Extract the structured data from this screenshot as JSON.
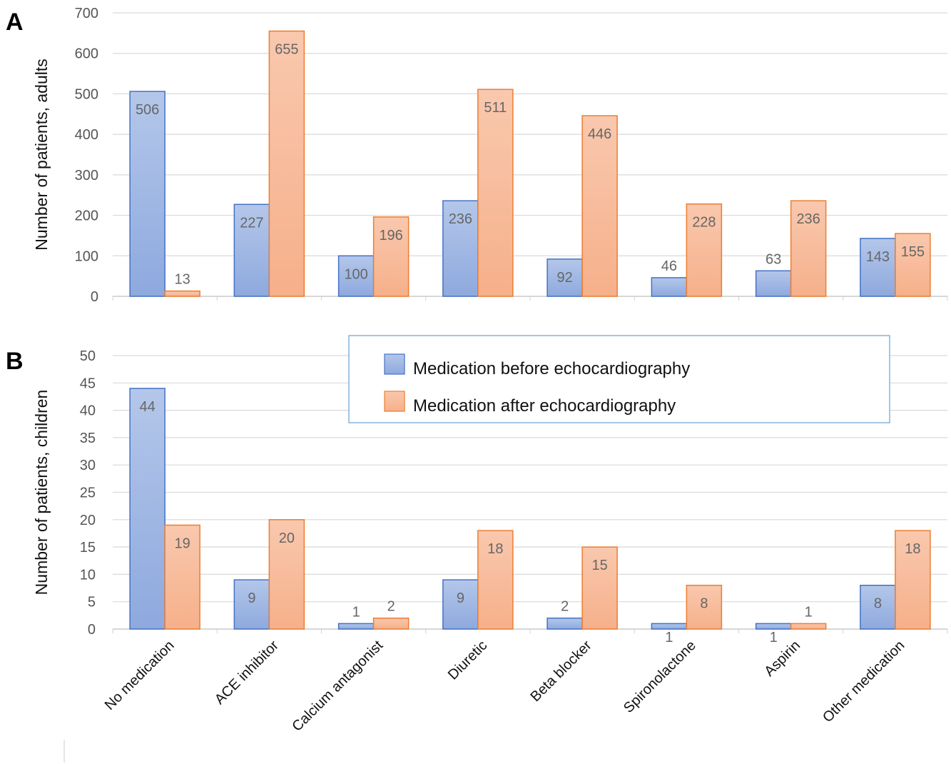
{
  "chart_data": [
    {
      "panel": "A",
      "type": "bar",
      "ylabel": "Number of patients, adults",
      "ylim": [
        0,
        700
      ],
      "yticks": [
        0,
        100,
        200,
        300,
        400,
        500,
        600,
        700
      ],
      "grid": true,
      "categories": [
        "No medication",
        "ACE inhibitor",
        "Calcium antagonist",
        "Diuretic",
        "Beta blocker",
        "Spironolactone",
        "Aspirin",
        "Other medication"
      ],
      "series": [
        {
          "name": "Medication before echocardiography",
          "values": [
            506,
            227,
            100,
            236,
            92,
            46,
            63,
            143
          ]
        },
        {
          "name": "Medication after echocardiography",
          "values": [
            13,
            655,
            196,
            511,
            446,
            228,
            236,
            155
          ]
        }
      ]
    },
    {
      "panel": "B",
      "type": "bar",
      "ylabel": "Number of patients, children",
      "ylim": [
        0,
        50
      ],
      "yticks": [
        0,
        5,
        10,
        15,
        20,
        25,
        30,
        35,
        40,
        45,
        50
      ],
      "grid": true,
      "categories": [
        "No medication",
        "ACE inhibitor",
        "Calcium antagonist",
        "Diuretic",
        "Beta blocker",
        "Spironolactone",
        "Aspirin",
        "Other medication"
      ],
      "series": [
        {
          "name": "Medication before echocardiography",
          "values": [
            44,
            9,
            1,
            9,
            2,
            1,
            1,
            8
          ]
        },
        {
          "name": "Medication after echocardiography",
          "values": [
            19,
            20,
            2,
            18,
            15,
            8,
            1,
            18
          ]
        }
      ]
    }
  ],
  "legend": {
    "placement": "upper-right of panel B",
    "items": [
      {
        "label": "Medication before echocardiography",
        "color": "#8faadc",
        "stroke": "#4472c4"
      },
      {
        "label": "Medication after echocardiography",
        "color": "#f8b894",
        "stroke": "#ed7d31"
      }
    ]
  },
  "colors": {
    "before_fill": "#a9bde6",
    "before_stroke": "#4472c4",
    "after_fill": "#f8bfa0",
    "after_stroke": "#ed7d31",
    "grid": "#d9d9d9",
    "label": "#666666"
  }
}
